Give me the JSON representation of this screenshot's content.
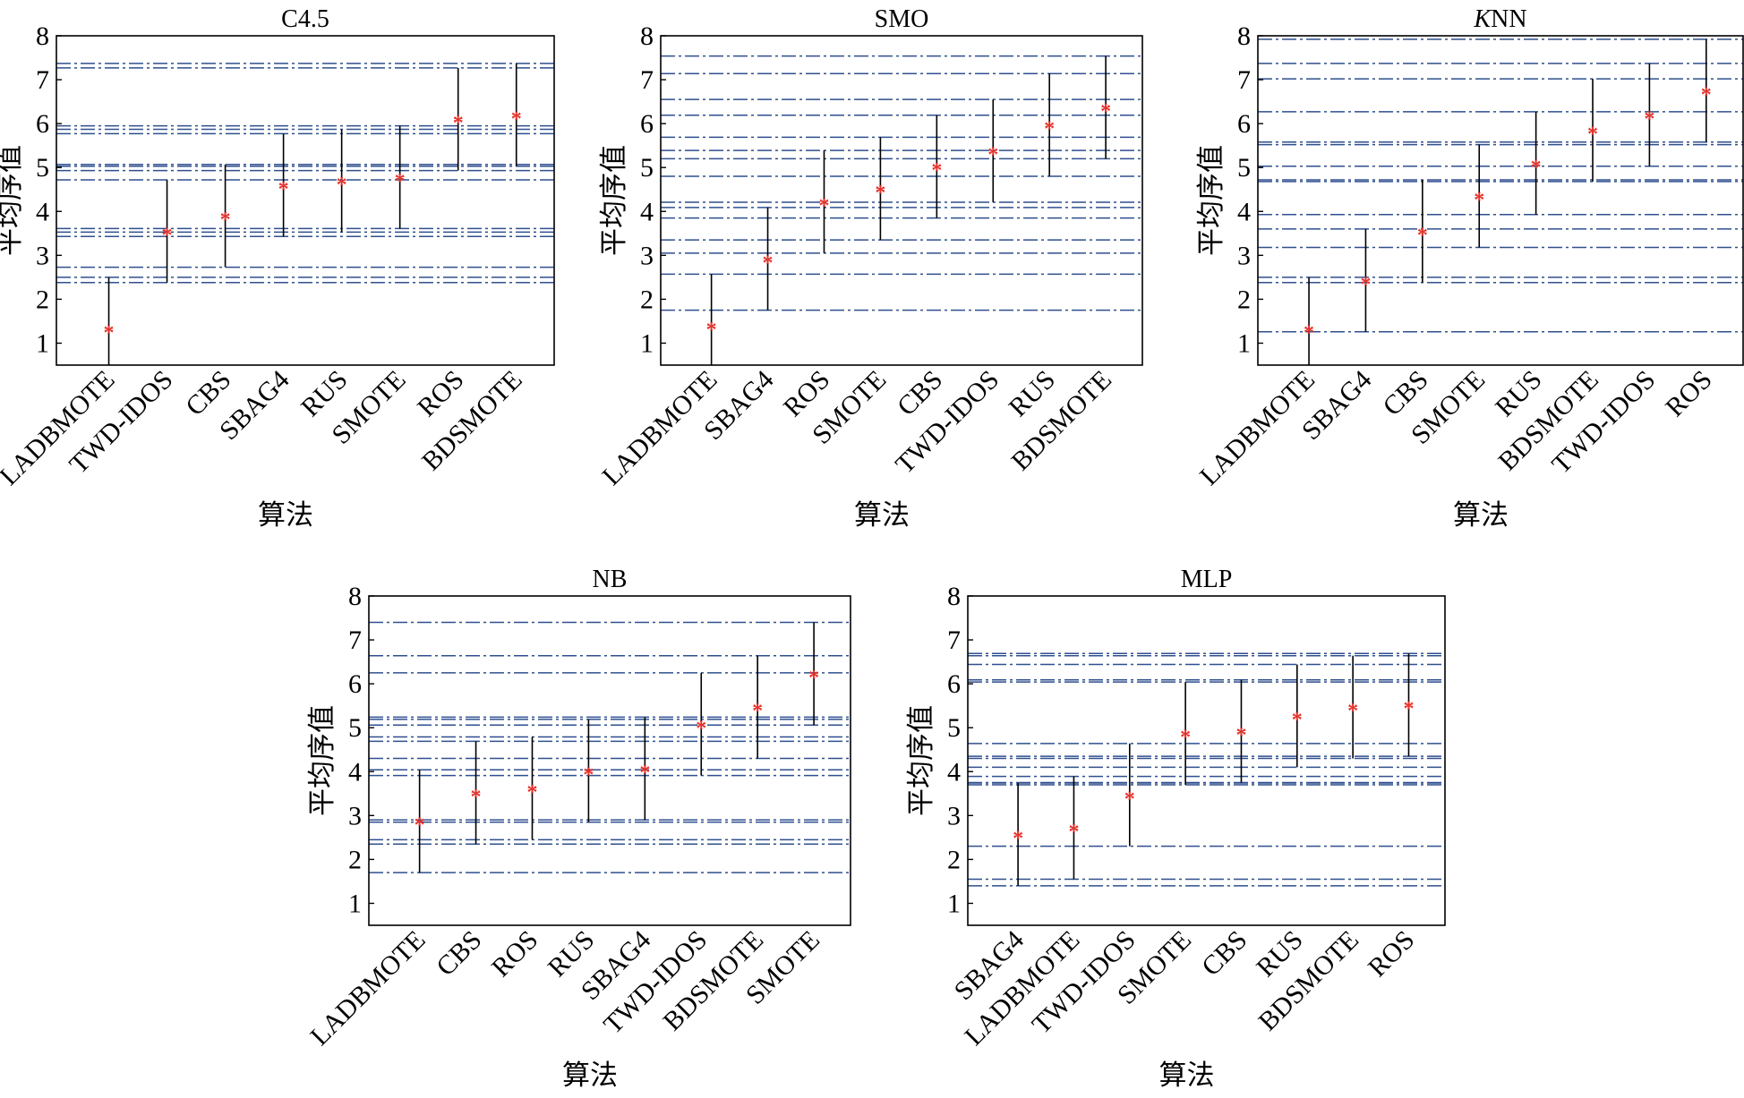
{
  "chart_data": [
    {
      "type": "scatter",
      "title": "C4.5",
      "xlabel": "算法",
      "ylabel": "平均序值",
      "ylim": [
        0.5,
        8
      ],
      "yticks": [
        1,
        2,
        3,
        4,
        5,
        6,
        7,
        8
      ],
      "categories": [
        "LADBMOTE",
        "TWD-IDOS",
        "CBS",
        "SBAG4",
        "RUS",
        "SMOTE",
        "ROS",
        "BDSMOTE"
      ],
      "values": [
        1.33,
        3.55,
        3.9,
        4.6,
        4.7,
        4.78,
        6.1,
        6.2
      ],
      "interval_half_width": 1.17
    },
    {
      "type": "scatter",
      "title": "SMO",
      "xlabel": "算法",
      "ylabel": "平均序值",
      "ylim": [
        0.5,
        8
      ],
      "yticks": [
        1,
        2,
        3,
        4,
        5,
        6,
        7,
        8
      ],
      "categories": [
        "LADBMOTE",
        "SBAG4",
        "ROS",
        "SMOTE",
        "CBS",
        "TWD-IDOS",
        "RUS",
        "BDSMOTE"
      ],
      "values": [
        1.4,
        2.92,
        4.22,
        4.52,
        5.02,
        5.38,
        5.97,
        6.37
      ],
      "interval_half_width": 1.17
    },
    {
      "type": "scatter",
      "title": "KNN",
      "title_italic_part": "K",
      "xlabel": "算法",
      "ylabel": "平均序值",
      "ylim": [
        0.5,
        8
      ],
      "yticks": [
        1,
        2,
        3,
        4,
        5,
        6,
        7,
        8
      ],
      "categories": [
        "LADBMOTE",
        "SBAG4",
        "CBS",
        "SMOTE",
        "RUS",
        "BDSMOTE",
        "TWD-IDOS",
        "ROS"
      ],
      "values": [
        1.33,
        2.43,
        3.55,
        4.35,
        5.1,
        5.85,
        6.2,
        6.75
      ],
      "interval_half_width": 1.17
    },
    {
      "type": "scatter",
      "title": "NB",
      "xlabel": "算法",
      "ylabel": "平均序值",
      "ylim": [
        0.5,
        8
      ],
      "yticks": [
        1,
        2,
        3,
        4,
        5,
        6,
        7,
        8
      ],
      "categories": [
        "LADBMOTE",
        "CBS",
        "ROS",
        "RUS",
        "SBAG4",
        "TWD-IDOS",
        "BDSMOTE",
        "SMOTE"
      ],
      "values": [
        2.87,
        3.52,
        3.62,
        4.02,
        4.07,
        5.08,
        5.47,
        6.23
      ],
      "interval_half_width": 1.17
    },
    {
      "type": "scatter",
      "title": "MLP",
      "xlabel": "算法",
      "ylabel": "平均序值",
      "ylim": [
        0.5,
        8
      ],
      "yticks": [
        1,
        2,
        3,
        4,
        5,
        6,
        7,
        8
      ],
      "categories": [
        "SBAG4",
        "LADBMOTE",
        "TWD-IDOS",
        "SMOTE",
        "CBS",
        "RUS",
        "BDSMOTE",
        "ROS"
      ],
      "values": [
        2.57,
        2.72,
        3.47,
        4.87,
        4.92,
        5.27,
        5.47,
        5.52
      ],
      "interval_half_width": 1.17
    }
  ],
  "colors": {
    "point": "#e8312a",
    "errorbar": "#000000",
    "reference_line": "#2f4f8f",
    "axes": "#000000"
  }
}
